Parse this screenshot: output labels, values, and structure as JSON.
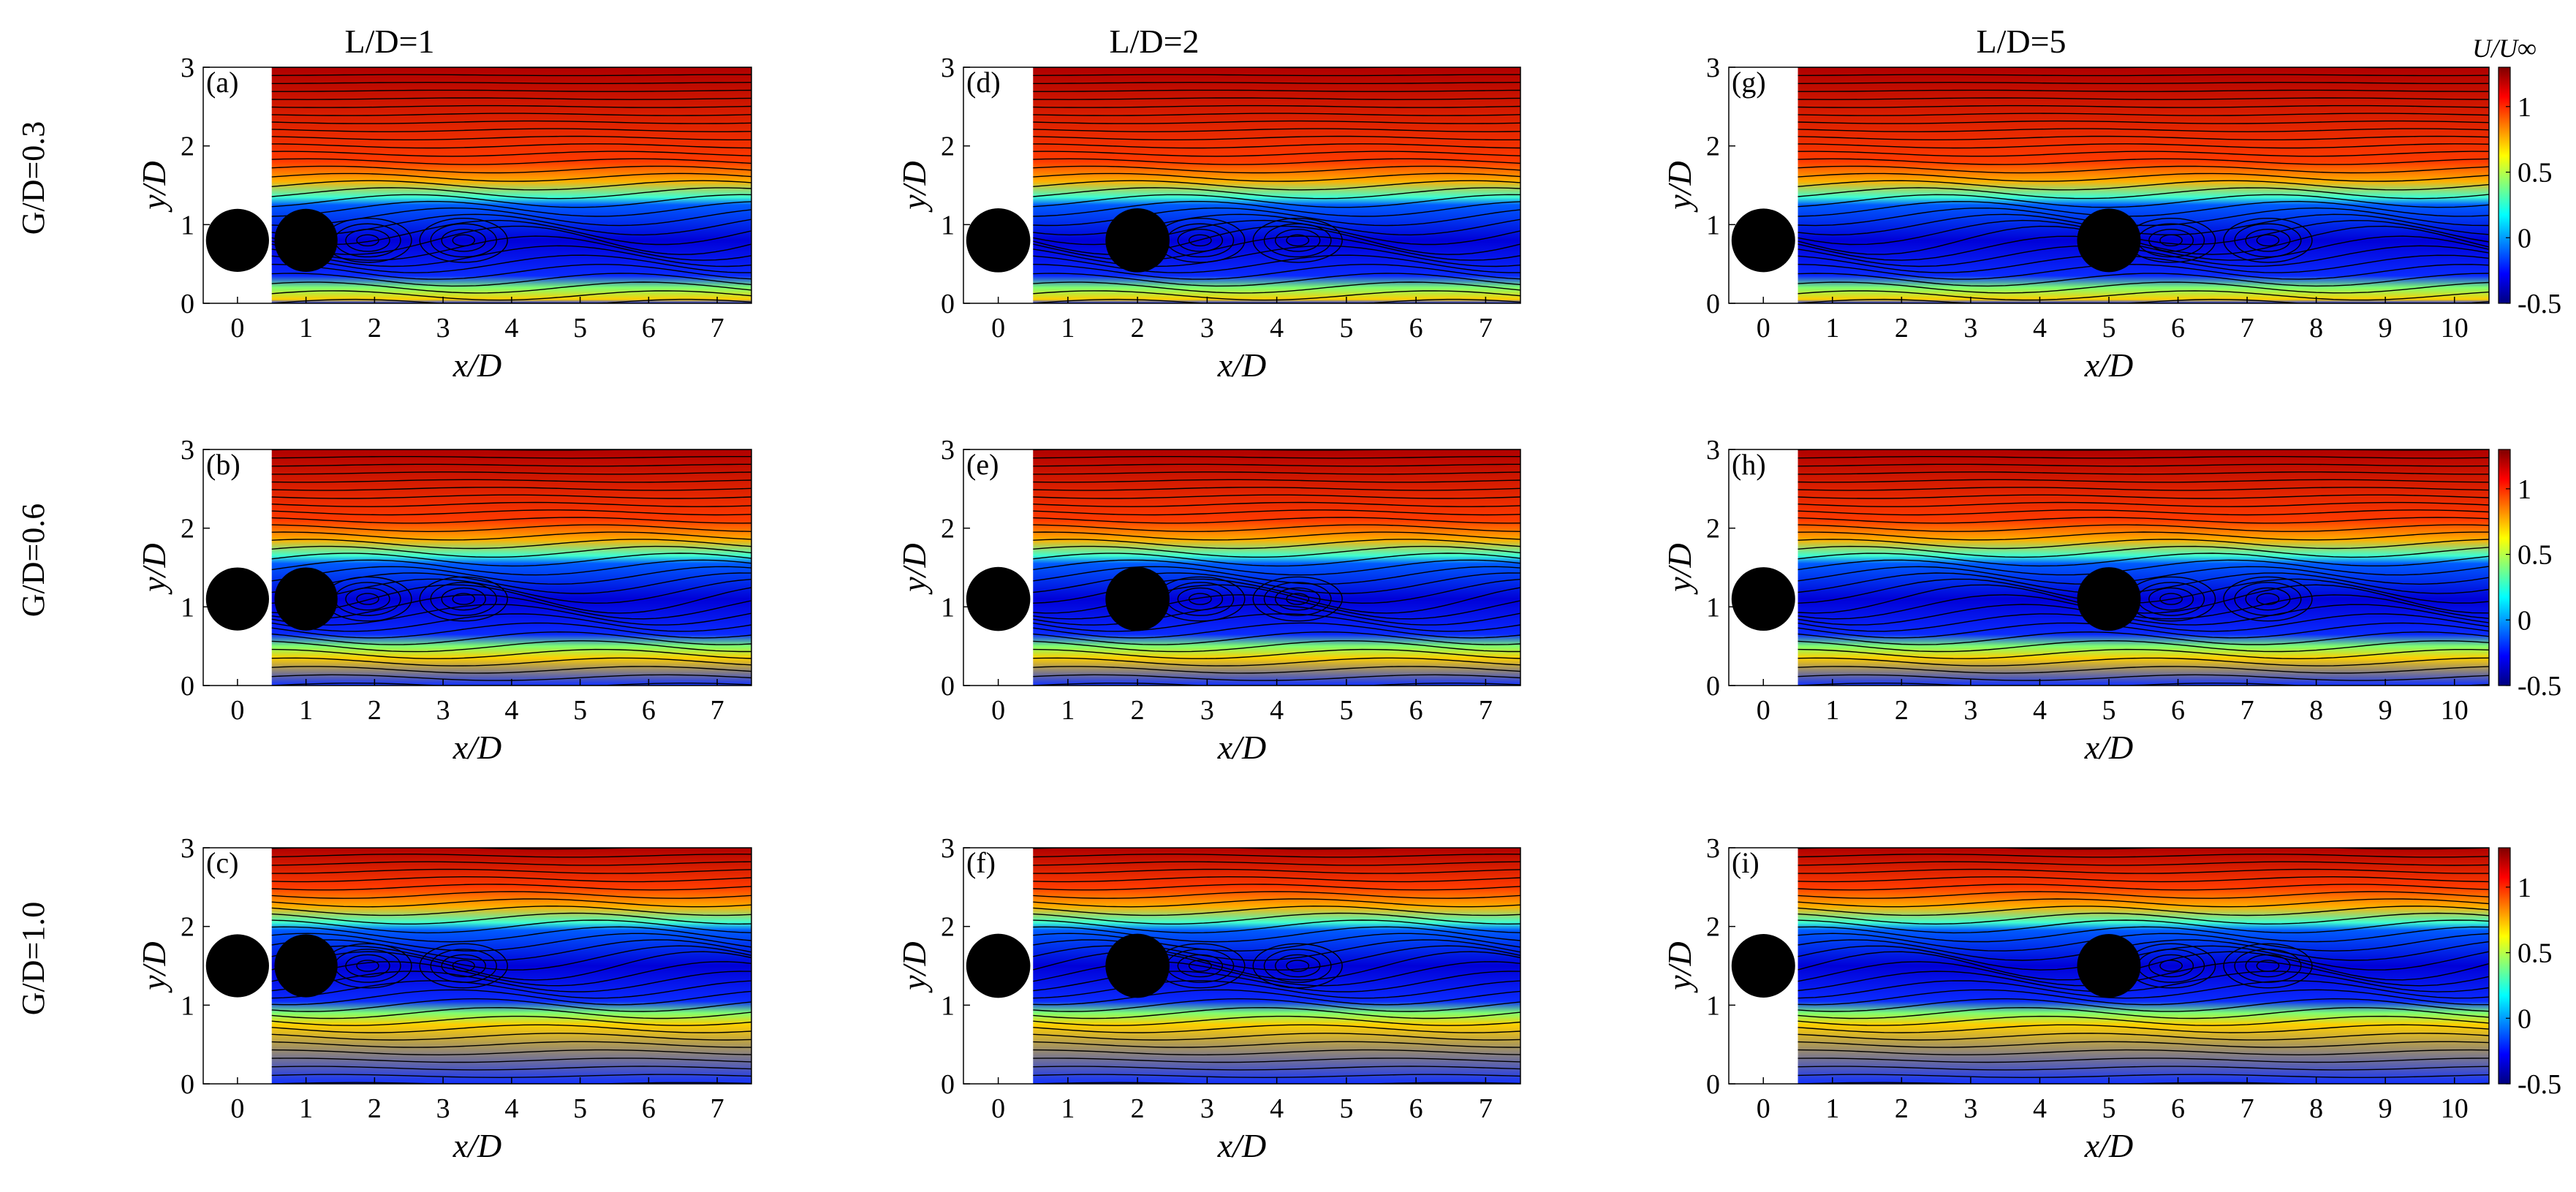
{
  "figure": {
    "column_titles": [
      "L/D=1",
      "L/D=2",
      "L/D=5"
    ],
    "row_titles": [
      "G/D=0.3",
      "G/D=0.6",
      "G/D=1.0"
    ],
    "colorbar_title": "U/U∞"
  },
  "chart_data": [
    {
      "type": "heatmap",
      "panel": "(a)",
      "title": "",
      "gap_ratio": 0.3,
      "spacing_ratio": 1,
      "xlabel": "x/D",
      "ylabel": "y/D",
      "xlim": [
        -0.5,
        7.5
      ],
      "ylim": [
        0,
        3
      ],
      "xticks": [
        0,
        1,
        2,
        3,
        4,
        5,
        6,
        7
      ],
      "yticks": [
        0,
        1,
        2,
        3
      ],
      "measurement_start_x": 0.5,
      "cylinder_centers_x": [
        0,
        1
      ],
      "cylinder_center_y": 0.8,
      "color_range": [
        -0.5,
        1.3
      ],
      "colorbar_ticks": [
        -0.5,
        0,
        0.5,
        1
      ],
      "colorbar_visible": false
    },
    {
      "type": "heatmap",
      "panel": "(b)",
      "title": "",
      "gap_ratio": 0.6,
      "spacing_ratio": 1,
      "xlabel": "x/D",
      "ylabel": "y/D",
      "xlim": [
        -0.5,
        7.5
      ],
      "ylim": [
        0,
        3
      ],
      "xticks": [
        0,
        1,
        2,
        3,
        4,
        5,
        6,
        7
      ],
      "yticks": [
        0,
        1,
        2,
        3
      ],
      "measurement_start_x": 0.5,
      "cylinder_centers_x": [
        0,
        1
      ],
      "cylinder_center_y": 1.1,
      "color_range": [
        -0.5,
        1.3
      ],
      "colorbar_ticks": [
        -0.5,
        0,
        0.5,
        1
      ],
      "colorbar_visible": false
    },
    {
      "type": "heatmap",
      "panel": "(c)",
      "title": "",
      "gap_ratio": 1.0,
      "spacing_ratio": 1,
      "xlabel": "x/D",
      "ylabel": "y/D",
      "xlim": [
        -0.5,
        7.5
      ],
      "ylim": [
        0,
        3
      ],
      "xticks": [
        0,
        1,
        2,
        3,
        4,
        5,
        6,
        7
      ],
      "yticks": [
        0,
        1,
        2,
        3
      ],
      "measurement_start_x": 0.5,
      "cylinder_centers_x": [
        0,
        1
      ],
      "cylinder_center_y": 1.5,
      "color_range": [
        -0.5,
        1.3
      ],
      "colorbar_ticks": [
        -0.5,
        0,
        0.5,
        1
      ],
      "colorbar_visible": false
    },
    {
      "type": "heatmap",
      "panel": "(d)",
      "title": "",
      "gap_ratio": 0.3,
      "spacing_ratio": 2,
      "xlabel": "x/D",
      "ylabel": "y/D",
      "xlim": [
        -0.5,
        7.5
      ],
      "ylim": [
        0,
        3
      ],
      "xticks": [
        0,
        1,
        2,
        3,
        4,
        5,
        6,
        7
      ],
      "yticks": [
        0,
        1,
        2,
        3
      ],
      "measurement_start_x": 0.5,
      "cylinder_centers_x": [
        0,
        2
      ],
      "cylinder_center_y": 0.8,
      "color_range": [
        -0.5,
        1.3
      ],
      "colorbar_ticks": [
        -0.5,
        0,
        0.5,
        1
      ],
      "colorbar_visible": false
    },
    {
      "type": "heatmap",
      "panel": "(e)",
      "title": "",
      "gap_ratio": 0.6,
      "spacing_ratio": 2,
      "xlabel": "x/D",
      "ylabel": "y/D",
      "xlim": [
        -0.5,
        7.5
      ],
      "ylim": [
        0,
        3
      ],
      "xticks": [
        0,
        1,
        2,
        3,
        4,
        5,
        6,
        7
      ],
      "yticks": [
        0,
        1,
        2,
        3
      ],
      "measurement_start_x": 0.5,
      "cylinder_centers_x": [
        0,
        2
      ],
      "cylinder_center_y": 1.1,
      "color_range": [
        -0.5,
        1.3
      ],
      "colorbar_ticks": [
        -0.5,
        0,
        0.5,
        1
      ],
      "colorbar_visible": false
    },
    {
      "type": "heatmap",
      "panel": "(f)",
      "title": "",
      "gap_ratio": 1.0,
      "spacing_ratio": 2,
      "xlabel": "x/D",
      "ylabel": "y/D",
      "xlim": [
        -0.5,
        7.5
      ],
      "ylim": [
        0,
        3
      ],
      "xticks": [
        0,
        1,
        2,
        3,
        4,
        5,
        6,
        7
      ],
      "yticks": [
        0,
        1,
        2,
        3
      ],
      "measurement_start_x": 0.5,
      "cylinder_centers_x": [
        0,
        2
      ],
      "cylinder_center_y": 1.5,
      "color_range": [
        -0.5,
        1.3
      ],
      "colorbar_ticks": [
        -0.5,
        0,
        0.5,
        1
      ],
      "colorbar_visible": false
    },
    {
      "type": "heatmap",
      "panel": "(g)",
      "title": "",
      "gap_ratio": 0.3,
      "spacing_ratio": 5,
      "xlabel": "x/D",
      "ylabel": "y/D",
      "xlim": [
        -0.5,
        10.5
      ],
      "ylim": [
        0,
        3
      ],
      "xticks": [
        0,
        1,
        2,
        3,
        4,
        5,
        6,
        7,
        8,
        9,
        10
      ],
      "yticks": [
        0,
        1,
        2,
        3
      ],
      "measurement_start_x": 0.5,
      "cylinder_centers_x": [
        0,
        5
      ],
      "cylinder_center_y": 0.8,
      "color_range": [
        -0.5,
        1.3
      ],
      "colorbar_ticks": [
        -0.5,
        0,
        0.5,
        1
      ],
      "colorbar_visible": true
    },
    {
      "type": "heatmap",
      "panel": "(h)",
      "title": "",
      "gap_ratio": 0.6,
      "spacing_ratio": 5,
      "xlabel": "x/D",
      "ylabel": "y/D",
      "xlim": [
        -0.5,
        10.5
      ],
      "ylim": [
        0,
        3
      ],
      "xticks": [
        0,
        1,
        2,
        3,
        4,
        5,
        6,
        7,
        8,
        9,
        10
      ],
      "yticks": [
        0,
        1,
        2,
        3
      ],
      "measurement_start_x": 0.5,
      "cylinder_centers_x": [
        0,
        5
      ],
      "cylinder_center_y": 1.1,
      "color_range": [
        -0.5,
        1.3
      ],
      "colorbar_ticks": [
        -0.5,
        0,
        0.5,
        1
      ],
      "colorbar_visible": true
    },
    {
      "type": "heatmap",
      "panel": "(i)",
      "title": "",
      "gap_ratio": 1.0,
      "spacing_ratio": 5,
      "xlabel": "x/D",
      "ylabel": "y/D",
      "xlim": [
        -0.5,
        10.5
      ],
      "ylim": [
        0,
        3
      ],
      "xticks": [
        0,
        1,
        2,
        3,
        4,
        5,
        6,
        7,
        8,
        9,
        10
      ],
      "yticks": [
        0,
        1,
        2,
        3
      ],
      "measurement_start_x": 0.5,
      "cylinder_centers_x": [
        0,
        5
      ],
      "cylinder_center_y": 1.5,
      "color_range": [
        -0.5,
        1.3
      ],
      "colorbar_ticks": [
        -0.5,
        0,
        0.5,
        1
      ],
      "colorbar_visible": true
    }
  ],
  "colormap": {
    "name": "jet",
    "stops": [
      "#00007f",
      "#0000ff",
      "#007fff",
      "#00ffff",
      "#7fff7f",
      "#ffff00",
      "#ff7f00",
      "#ff0000",
      "#7f0000"
    ]
  }
}
